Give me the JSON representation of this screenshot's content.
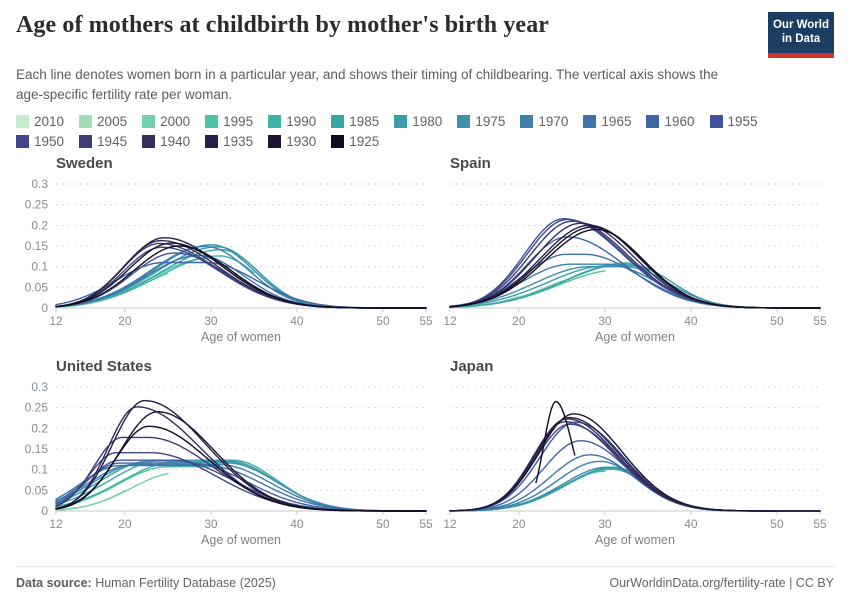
{
  "header": {
    "title": "Age of mothers at childbirth by mother's birth year",
    "subtitle": "Each line denotes women born in a particular year, and shows their timing of childbearing. The vertical axis shows the age-specific fertility rate per woman.",
    "logo": {
      "line1": "Our World",
      "line2": "in Data",
      "bg_color": "#1d3d63",
      "bar_color": "#d0342c"
    }
  },
  "legend": {
    "items": [
      {
        "year": "2010",
        "color": "#c9ebcd"
      },
      {
        "year": "2005",
        "color": "#a1dcb5"
      },
      {
        "year": "2000",
        "color": "#74cfae"
      },
      {
        "year": "1995",
        "color": "#4cc3a5"
      },
      {
        "year": "1990",
        "color": "#3fb3a5"
      },
      {
        "year": "1985",
        "color": "#3aa7a7"
      },
      {
        "year": "1980",
        "color": "#3a9caa"
      },
      {
        "year": "1975",
        "color": "#3c90ad"
      },
      {
        "year": "1970",
        "color": "#3d82ab"
      },
      {
        "year": "1965",
        "color": "#3e74a8"
      },
      {
        "year": "1960",
        "color": "#3f66a3"
      },
      {
        "year": "1955",
        "color": "#41549b"
      },
      {
        "year": "1950",
        "color": "#41478c"
      },
      {
        "year": "1945",
        "color": "#3d3c78"
      },
      {
        "year": "1940",
        "color": "#332c5e"
      },
      {
        "year": "1935",
        "color": "#282047"
      },
      {
        "year": "1930",
        "color": "#1c142f"
      },
      {
        "year": "1925",
        "color": "#130c20"
      }
    ]
  },
  "charts_common": {
    "xlabel": "Age of women",
    "xlim": [
      12,
      55
    ],
    "ylim": [
      0,
      0.3
    ],
    "x_ticks": [
      12,
      20,
      30,
      40,
      50,
      55
    ],
    "y_ticks": [
      0,
      0.05,
      0.1,
      0.15,
      0.2,
      0.25,
      0.3
    ],
    "grid": "dashed horizontal",
    "legend_position": "top"
  },
  "chart_data": [
    {
      "type": "line",
      "title": "Sweden",
      "show_y_labels": true,
      "sig_l_k": 2.55,
      "sig_r_k": 3.1,
      "series": [
        {
          "year": 1925,
          "peak_age": 26.3,
          "peak_rate": 0.15,
          "age_end": 55
        },
        {
          "year": 1930,
          "peak_age": 25.4,
          "peak_rate": 0.157,
          "age_end": 55
        },
        {
          "year": 1935,
          "peak_age": 24.6,
          "peak_rate": 0.17,
          "age_end": 55
        },
        {
          "year": 1940,
          "peak_age": 24.2,
          "peak_rate": 0.163,
          "age_end": 55
        },
        {
          "year": 1945,
          "peak_age": 24.0,
          "peak_rate": 0.156,
          "age_end": 55
        },
        {
          "year": 1950,
          "peak_age": 24.3,
          "peak_rate": 0.147,
          "age_end": 55
        },
        {
          "year": 1955,
          "peak_age": 25.8,
          "peak_rate": 0.133,
          "age_end": 55
        },
        {
          "year": 1960,
          "peak_age": 27.0,
          "peak_rate": 0.11,
          "plateau": 2.5,
          "age_end": 55
        },
        {
          "year": 1965,
          "peak_age": 28.6,
          "peak_rate": 0.127,
          "age_end": 55
        },
        {
          "year": 1970,
          "peak_age": 29.4,
          "peak_rate": 0.149,
          "age_end": 55
        },
        {
          "year": 1975,
          "peak_age": 30.1,
          "peak_rate": 0.153,
          "age_end": 55
        },
        {
          "year": 1980,
          "peak_age": 30.8,
          "peak_rate": 0.148,
          "age_end": 55
        },
        {
          "year": 1985,
          "peak_age": 31.2,
          "peak_rate": 0.141,
          "age_end": 40
        },
        {
          "year": 1990,
          "peak_age": 31.0,
          "peak_rate": 0.126,
          "age_end": 35
        },
        {
          "year": 1995,
          "peak_age": 29.8,
          "peak_rate": 0.121,
          "age_end": 30
        },
        {
          "year": 2000,
          "peak_age": 28.0,
          "peak_rate": 0.095,
          "age_end": 25
        },
        {
          "year": 2005,
          "peak_age": 27.0,
          "peak_rate": 0.085,
          "age_end": 20
        },
        {
          "year": 2010,
          "peak_age": 27.0,
          "peak_rate": 0.08,
          "age_end": 15
        }
      ]
    },
    {
      "type": "line",
      "title": "Spain",
      "show_y_labels": false,
      "sig_l_k": 2.7,
      "sig_r_k": 2.9,
      "series": [
        {
          "year": 1925,
          "peak_age": 29.0,
          "peak_rate": 0.19,
          "age_end": 55
        },
        {
          "year": 1930,
          "peak_age": 28.6,
          "peak_rate": 0.196,
          "age_end": 55
        },
        {
          "year": 1935,
          "peak_age": 28.2,
          "peak_rate": 0.2,
          "age_end": 55
        },
        {
          "year": 1940,
          "peak_age": 27.2,
          "peak_rate": 0.205,
          "age_end": 55
        },
        {
          "year": 1945,
          "peak_age": 26.2,
          "peak_rate": 0.21,
          "age_end": 55
        },
        {
          "year": 1950,
          "peak_age": 25.6,
          "peak_rate": 0.214,
          "age_end": 55
        },
        {
          "year": 1955,
          "peak_age": 25.2,
          "peak_rate": 0.216,
          "age_end": 55
        },
        {
          "year": 1960,
          "peak_age": 25.6,
          "peak_rate": 0.172,
          "age_end": 55
        },
        {
          "year": 1965,
          "peak_age": 26.6,
          "peak_rate": 0.13,
          "plateau": 1,
          "age_end": 55
        },
        {
          "year": 1970,
          "peak_age": 28.0,
          "peak_rate": 0.106,
          "plateau": 2,
          "age_end": 55
        },
        {
          "year": 1975,
          "peak_age": 30.3,
          "peak_rate": 0.1,
          "plateau": 2,
          "age_end": 55
        },
        {
          "year": 1980,
          "peak_age": 31.8,
          "peak_rate": 0.102,
          "plateau": 1.5,
          "age_end": 55
        },
        {
          "year": 1985,
          "peak_age": 32.4,
          "peak_rate": 0.106,
          "age_end": 40
        },
        {
          "year": 1990,
          "peak_age": 32.5,
          "peak_rate": 0.109,
          "age_end": 35
        },
        {
          "year": 1995,
          "peak_age": 31.5,
          "peak_rate": 0.092,
          "age_end": 30
        },
        {
          "year": 2000,
          "peak_age": 29.5,
          "peak_rate": 0.085,
          "age_end": 25
        },
        {
          "year": 2005,
          "peak_age": 28.0,
          "peak_rate": 0.08,
          "age_end": 20
        },
        {
          "year": 2010,
          "peak_age": 28.0,
          "peak_rate": 0.08,
          "age_end": 15
        }
      ]
    },
    {
      "type": "line",
      "title": "United States",
      "show_y_labels": true,
      "sig_l_k": 2.5,
      "sig_r_k": 3.2,
      "series": [
        {
          "year": 1925,
          "peak_age": 22.8,
          "peak_rate": 0.205,
          "age_end": 55
        },
        {
          "year": 1930,
          "peak_age": 23.8,
          "peak_rate": 0.24,
          "age_end": 55
        },
        {
          "year": 1935,
          "peak_age": 22.3,
          "peak_rate": 0.267,
          "age_end": 55
        },
        {
          "year": 1940,
          "peak_age": 21.4,
          "peak_rate": 0.252,
          "age_end": 55
        },
        {
          "year": 1945,
          "peak_age": 21.2,
          "peak_rate": 0.178,
          "plateau": 1.5,
          "age_end": 55
        },
        {
          "year": 1950,
          "peak_age": 21.0,
          "peak_rate": 0.141,
          "plateau": 2,
          "age_end": 55
        },
        {
          "year": 1955,
          "peak_age": 22.5,
          "peak_rate": 0.123,
          "plateau": 3,
          "age_end": 55
        },
        {
          "year": 1960,
          "peak_age": 23.5,
          "peak_rate": 0.116,
          "plateau": 4,
          "age_end": 55
        },
        {
          "year": 1965,
          "peak_age": 24.5,
          "peak_rate": 0.11,
          "plateau": 5,
          "age_end": 55
        },
        {
          "year": 1970,
          "peak_age": 26.0,
          "peak_rate": 0.112,
          "plateau": 5,
          "age_end": 55
        },
        {
          "year": 1975,
          "peak_age": 27.0,
          "peak_rate": 0.116,
          "plateau": 5,
          "age_end": 50
        },
        {
          "year": 1980,
          "peak_age": 27.5,
          "peak_rate": 0.121,
          "plateau": 4.5,
          "age_end": 45
        },
        {
          "year": 1985,
          "peak_age": 28.5,
          "peak_rate": 0.123,
          "plateau": 4,
          "age_end": 40
        },
        {
          "year": 1990,
          "peak_age": 29.0,
          "peak_rate": 0.119,
          "plateau": 3,
          "age_end": 35
        },
        {
          "year": 1995,
          "peak_age": 27.5,
          "peak_rate": 0.107,
          "plateau": 2.5,
          "age_end": 30
        },
        {
          "year": 2000,
          "peak_age": 26.0,
          "peak_rate": 0.092,
          "age_end": 25
        },
        {
          "year": 2005,
          "peak_age": 25.0,
          "peak_rate": 0.085,
          "age_end": 20
        },
        {
          "year": 2010,
          "peak_age": 25.0,
          "peak_rate": 0.08,
          "age_end": 15
        }
      ]
    },
    {
      "type": "line",
      "title": "Japan",
      "show_y_labels": false,
      "sig_l_k": 3.3,
      "sig_r_k": 3.3,
      "series": [
        {
          "year": 1925,
          "from": 22,
          "peak_age": 24.3,
          "peak_rate": 0.265,
          "sig_l": 1.4,
          "sig_r": 1.9,
          "age_end": 26.5
        },
        {
          "year": 1930,
          "peak_age": 26.4,
          "peak_rate": 0.235,
          "age_end": 50
        },
        {
          "year": 1935,
          "peak_age": 25.9,
          "peak_rate": 0.226,
          "age_end": 55
        },
        {
          "year": 1940,
          "peak_age": 25.6,
          "peak_rate": 0.223,
          "age_end": 55
        },
        {
          "year": 1945,
          "peak_age": 25.4,
          "peak_rate": 0.216,
          "age_end": 55
        },
        {
          "year": 1950,
          "peak_age": 25.9,
          "peak_rate": 0.21,
          "age_end": 55
        },
        {
          "year": 1955,
          "peak_age": 26.6,
          "peak_rate": 0.215,
          "age_end": 55
        },
        {
          "year": 1960,
          "peak_age": 27.2,
          "peak_rate": 0.17,
          "age_end": 55
        },
        {
          "year": 1965,
          "peak_age": 28.3,
          "peak_rate": 0.136,
          "age_end": 55
        },
        {
          "year": 1970,
          "peak_age": 29.4,
          "peak_rate": 0.12,
          "age_end": 55
        },
        {
          "year": 1975,
          "peak_age": 30.3,
          "peak_rate": 0.106,
          "age_end": 55
        },
        {
          "year": 1980,
          "peak_age": 30.8,
          "peak_rate": 0.104,
          "age_end": 45
        },
        {
          "year": 1985,
          "peak_age": 31.0,
          "peak_rate": 0.106,
          "age_end": 40
        },
        {
          "year": 1990,
          "peak_age": 30.8,
          "peak_rate": 0.101,
          "age_end": 35
        },
        {
          "year": 1995,
          "peak_age": 30.0,
          "peak_rate": 0.096,
          "age_end": 30
        },
        {
          "year": 2000,
          "peak_age": 29.0,
          "peak_rate": 0.088,
          "age_end": 25
        },
        {
          "year": 2005,
          "peak_age": 28.0,
          "peak_rate": 0.08,
          "age_end": 20
        },
        {
          "year": 2010,
          "peak_age": 28.0,
          "peak_rate": 0.08,
          "age_end": 15
        }
      ]
    }
  ],
  "footer": {
    "source_label": "Data source:",
    "source_value": " Human Fertility Database (2025)",
    "right_link": "OurWorldinData.org/fertility-rate",
    "right_separator": " | ",
    "right_license": "CC BY"
  },
  "style_colors": {
    "grid": "#d9dbdd",
    "axis": "#c6c9cc",
    "tick_text": "#878d92",
    "caption_text": "#7d8286"
  }
}
